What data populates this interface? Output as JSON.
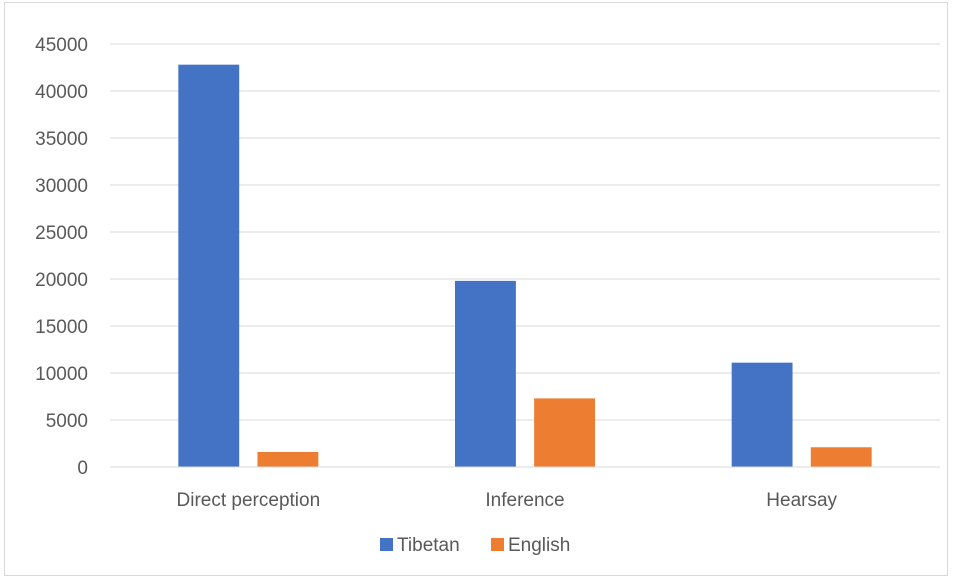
{
  "chart_data": {
    "type": "bar",
    "title": "",
    "xlabel": "",
    "ylabel": "",
    "categories": [
      "Direct perception",
      "Inference",
      "Hearsay"
    ],
    "series": [
      {
        "name": "Tibetan",
        "color": "#4472c4",
        "values": [
          42800,
          19800,
          11100
        ]
      },
      {
        "name": "English",
        "color": "#ed7d31",
        "values": [
          1600,
          7300,
          2100
        ]
      }
    ],
    "ylim": [
      0,
      45000
    ],
    "yticks": [
      0,
      5000,
      10000,
      15000,
      20000,
      25000,
      30000,
      35000,
      40000,
      45000
    ],
    "grid": true,
    "legend_position": "bottom"
  }
}
